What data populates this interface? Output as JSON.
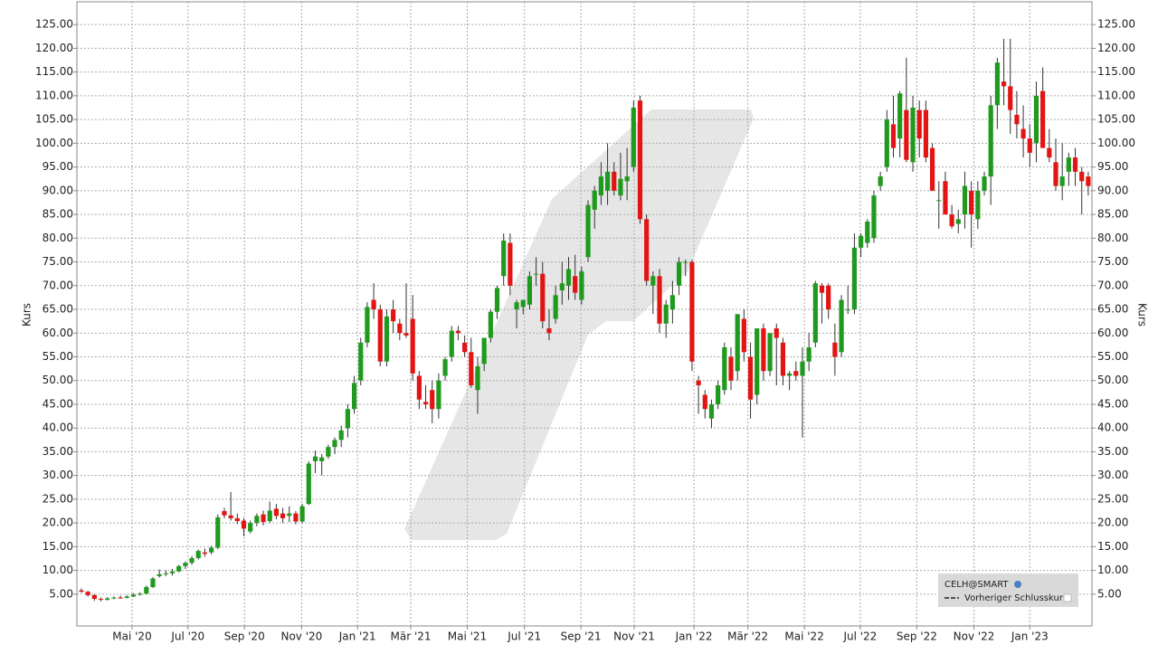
{
  "chart_data": {
    "type": "candlestick",
    "ylabel": "Kurs",
    "legend": {
      "items": [
        "CELH@SMART",
        "Vorheriger Schlusskurs"
      ],
      "corner": "bottom-right"
    },
    "up_color": "#1f9a1f",
    "down_color": "#e31414",
    "grid": true,
    "ylim": [
      -1.7,
      129.8
    ],
    "yticks": [
      {
        "value": 5,
        "label": "5.00"
      },
      {
        "value": 10,
        "label": "10.00"
      },
      {
        "value": 15,
        "label": "15.00"
      },
      {
        "value": 20,
        "label": "20.00"
      },
      {
        "value": 25,
        "label": "25.00"
      },
      {
        "value": 30,
        "label": "30.00"
      },
      {
        "value": 35,
        "label": "35.00"
      },
      {
        "value": 40,
        "label": "40.00"
      },
      {
        "value": 45,
        "label": "45.00"
      },
      {
        "value": 50,
        "label": "50.00"
      },
      {
        "value": 55,
        "label": "55.00"
      },
      {
        "value": 60,
        "label": "60.00"
      },
      {
        "value": 65,
        "label": "65.00"
      },
      {
        "value": 70,
        "label": "70.00"
      },
      {
        "value": 75,
        "label": "75.00"
      },
      {
        "value": 80,
        "label": "80.00"
      },
      {
        "value": 85,
        "label": "85.00"
      },
      {
        "value": 90,
        "label": "90.00"
      },
      {
        "value": 95,
        "label": "95.00"
      },
      {
        "value": 100,
        "label": "100.00"
      },
      {
        "value": 105,
        "label": "105.00"
      },
      {
        "value": 110,
        "label": "110.00"
      },
      {
        "value": 115,
        "label": "115.00"
      },
      {
        "value": 120,
        "label": "120.00"
      },
      {
        "value": 125,
        "label": "125.00"
      }
    ],
    "xticks": [
      {
        "value": 7.8,
        "label": "Mai '20"
      },
      {
        "value": 16.4,
        "label": "Jul '20"
      },
      {
        "value": 25.1,
        "label": "Sep '20"
      },
      {
        "value": 33.9,
        "label": "Nov '20"
      },
      {
        "value": 42.5,
        "label": "Jan '21"
      },
      {
        "value": 50.7,
        "label": "Mär '21"
      },
      {
        "value": 59.4,
        "label": "Mai '21"
      },
      {
        "value": 68.2,
        "label": "Jul '21"
      },
      {
        "value": 76.9,
        "label": "Sep '21"
      },
      {
        "value": 85.1,
        "label": "Nov '21"
      },
      {
        "value": 94.3,
        "label": "Jan '22"
      },
      {
        "value": 102.6,
        "label": "Mär '22"
      },
      {
        "value": 111.3,
        "label": "Mai '22"
      },
      {
        "value": 119.9,
        "label": "Jul '22"
      },
      {
        "value": 128.6,
        "label": "Sep '22"
      },
      {
        "value": 137.4,
        "label": "Nov '22"
      },
      {
        "value": 146,
        "label": "Jan '23"
      }
    ],
    "ohlc": [
      [
        5.8,
        6.2,
        5.3,
        5.5
      ],
      [
        5.5,
        5.7,
        4.5,
        4.8
      ],
      [
        4.8,
        5,
        3.6,
        4
      ],
      [
        4,
        4.3,
        3.5,
        3.8
      ],
      [
        3.8,
        4.4,
        3.7,
        4.1
      ],
      [
        4.1,
        4.5,
        3.9,
        4.3
      ],
      [
        4.3,
        4.7,
        4,
        4.2
      ],
      [
        4.2,
        4.8,
        4.1,
        4.5
      ],
      [
        4.5,
        5.2,
        4.4,
        4.9
      ],
      [
        4.9,
        5.4,
        4.7,
        5.1
      ],
      [
        5.1,
        6.8,
        5,
        6.5
      ],
      [
        6.5,
        8.6,
        6.3,
        8.3
      ],
      [
        8.8,
        10.2,
        8.5,
        9.2
      ],
      [
        9.2,
        10,
        8.8,
        9.4
      ],
      [
        9.4,
        10.3,
        8.9,
        9.8
      ],
      [
        9.8,
        11.2,
        9.6,
        10.9
      ],
      [
        10.9,
        11.9,
        10.3,
        11.6
      ],
      [
        11.6,
        13,
        11.2,
        12.6
      ],
      [
        12.6,
        14.4,
        12.3,
        14.1
      ],
      [
        13.8,
        14.6,
        12.9,
        13.5
      ],
      [
        13.8,
        15.2,
        13.4,
        14.8
      ],
      [
        14.8,
        21.8,
        14.5,
        21.2
      ],
      [
        22.5,
        23.2,
        21,
        21.6
      ],
      [
        21.6,
        26.5,
        20.5,
        21
      ],
      [
        21,
        22,
        19.8,
        20.4
      ],
      [
        20.5,
        21,
        17.2,
        18.8
      ],
      [
        18.2,
        20.5,
        17.8,
        20
      ],
      [
        20,
        22,
        19.3,
        21.5
      ],
      [
        21.8,
        22.6,
        19.5,
        20.2
      ],
      [
        20.4,
        24.5,
        20,
        22.6
      ],
      [
        23,
        24,
        20.8,
        21.5
      ],
      [
        22,
        23.2,
        20,
        21
      ],
      [
        21.5,
        23.5,
        20.2,
        22
      ],
      [
        22,
        22.5,
        19.7,
        20.3
      ],
      [
        20.3,
        24,
        20,
        23.5
      ],
      [
        24,
        33,
        23.8,
        32.5
      ],
      [
        33,
        35.2,
        30.5,
        34
      ],
      [
        33,
        34.5,
        30,
        33.8
      ],
      [
        34,
        36.5,
        33.5,
        36
      ],
      [
        36,
        38,
        34.5,
        37.5
      ],
      [
        37.5,
        40.5,
        36,
        39.5
      ],
      [
        40,
        45,
        38,
        44
      ],
      [
        44,
        51,
        43,
        49.5
      ],
      [
        50,
        59,
        49,
        58
      ],
      [
        58,
        66.5,
        57,
        65.5
      ],
      [
        67,
        70.5,
        63,
        65
      ],
      [
        65,
        66,
        53,
        54
      ],
      [
        54,
        65,
        53,
        63.5
      ],
      [
        65,
        67,
        60,
        62.5
      ],
      [
        62,
        63,
        58.5,
        60
      ],
      [
        60,
        70.5,
        59,
        59.5
      ],
      [
        63,
        68,
        50,
        51.5
      ],
      [
        51,
        52,
        44,
        46
      ],
      [
        45.5,
        49,
        44,
        45
      ],
      [
        48,
        50,
        41,
        44
      ],
      [
        44,
        51.5,
        42,
        50
      ],
      [
        51,
        55,
        50,
        54.5
      ],
      [
        55,
        61.5,
        54,
        60.5
      ],
      [
        60.5,
        61.5,
        58.5,
        60
      ],
      [
        58,
        59.5,
        55,
        56
      ],
      [
        56,
        59,
        48.5,
        49
      ],
      [
        48,
        55,
        43,
        53
      ],
      [
        53.5,
        59,
        52,
        59
      ],
      [
        59,
        65,
        58,
        64.5
      ],
      [
        64.5,
        70,
        63,
        69.5
      ],
      [
        72,
        81,
        70,
        79.5
      ],
      [
        79,
        81,
        68,
        70
      ],
      [
        65,
        67,
        61,
        66.5
      ],
      [
        65.5,
        67,
        64,
        67
      ],
      [
        66,
        73,
        65,
        72
      ],
      [
        72.5,
        76,
        70,
        72.5
      ],
      [
        72.5,
        75,
        61,
        62.5
      ],
      [
        61,
        65,
        58.5,
        60
      ],
      [
        63,
        70,
        62,
        68
      ],
      [
        69,
        75,
        66,
        70.5
      ],
      [
        70,
        76,
        67,
        73.5
      ],
      [
        72,
        76.5,
        67,
        68.5
      ],
      [
        67,
        74,
        66,
        73
      ],
      [
        76,
        88,
        75,
        87
      ],
      [
        86,
        91,
        82,
        90
      ],
      [
        89,
        96,
        87,
        93
      ],
      [
        90,
        100,
        87,
        94
      ],
      [
        94,
        96,
        89,
        90
      ],
      [
        89,
        98,
        88,
        92.5
      ],
      [
        92,
        99,
        88,
        93
      ],
      [
        95,
        109,
        94,
        107.5
      ],
      [
        109,
        110,
        83,
        84
      ],
      [
        84,
        85,
        70,
        71
      ],
      [
        70,
        73,
        64,
        72
      ],
      [
        72,
        73.5,
        60,
        62
      ],
      [
        62,
        67,
        59,
        66
      ],
      [
        65,
        71,
        62,
        68
      ],
      [
        70,
        76,
        68,
        75
      ],
      [
        75,
        75.5,
        72,
        75
      ],
      [
        75,
        75.5,
        52,
        54
      ],
      [
        50,
        51,
        43,
        49
      ],
      [
        47,
        48,
        42,
        44
      ],
      [
        42,
        46,
        40,
        45
      ],
      [
        45,
        50,
        44,
        49
      ],
      [
        48,
        58,
        47,
        57
      ],
      [
        55,
        57,
        48,
        50
      ],
      [
        52,
        64,
        50,
        64
      ],
      [
        63,
        65,
        54,
        56
      ],
      [
        55,
        58,
        42,
        46
      ],
      [
        47,
        61,
        45,
        61
      ],
      [
        61,
        62,
        50,
        52
      ],
      [
        52,
        60,
        51,
        60
      ],
      [
        61,
        62,
        49,
        59
      ],
      [
        58,
        59,
        49,
        51
      ],
      [
        51,
        52,
        48,
        51.5
      ],
      [
        52,
        54,
        50,
        51
      ],
      [
        51,
        57,
        38,
        54
      ],
      [
        54,
        60,
        52,
        57
      ],
      [
        58,
        71,
        57,
        70.5
      ],
      [
        70,
        70.5,
        62,
        68.5
      ],
      [
        70,
        70.5,
        63,
        65
      ],
      [
        58,
        62,
        51,
        55
      ],
      [
        56,
        68,
        55,
        67
      ],
      [
        65,
        70,
        64,
        65
      ],
      [
        65,
        81,
        64,
        78
      ],
      [
        78,
        81,
        76,
        80.5
      ],
      [
        79,
        84,
        78,
        83.5
      ],
      [
        80,
        90,
        79,
        89
      ],
      [
        91,
        94,
        90,
        93
      ],
      [
        95,
        107,
        94,
        105
      ],
      [
        104,
        110,
        97,
        99
      ],
      [
        101,
        111,
        97,
        110.5
      ],
      [
        107,
        118,
        96,
        96.5
      ],
      [
        96,
        110,
        94,
        107.5
      ],
      [
        107,
        109,
        97,
        101
      ],
      [
        107,
        109,
        96,
        97
      ],
      [
        99,
        100,
        90,
        90
      ],
      [
        88,
        92,
        82,
        88
      ],
      [
        92,
        94,
        85,
        85
      ],
      [
        85,
        87,
        82,
        82.5
      ],
      [
        83,
        86,
        81,
        84
      ],
      [
        85,
        94,
        82,
        91
      ],
      [
        90,
        92,
        78,
        85
      ],
      [
        84,
        92,
        82,
        90
      ],
      [
        90,
        94,
        89,
        93
      ],
      [
        93,
        110,
        87,
        108
      ],
      [
        108,
        118,
        103,
        117
      ],
      [
        113,
        122,
        108,
        112
      ],
      [
        112,
        122,
        102,
        107
      ],
      [
        106,
        111,
        101,
        104
      ],
      [
        103,
        108,
        97,
        101
      ],
      [
        101,
        104,
        95,
        98
      ],
      [
        100,
        113,
        96,
        110
      ],
      [
        111,
        116,
        99,
        99
      ],
      [
        99,
        103,
        96,
        97
      ],
      [
        96,
        101,
        90,
        91
      ],
      [
        91,
        100,
        88,
        93
      ],
      [
        94,
        98,
        91,
        97
      ],
      [
        97,
        99,
        91,
        94
      ],
      [
        94,
        95,
        85,
        92
      ],
      [
        93,
        94,
        89,
        91
      ]
    ]
  }
}
